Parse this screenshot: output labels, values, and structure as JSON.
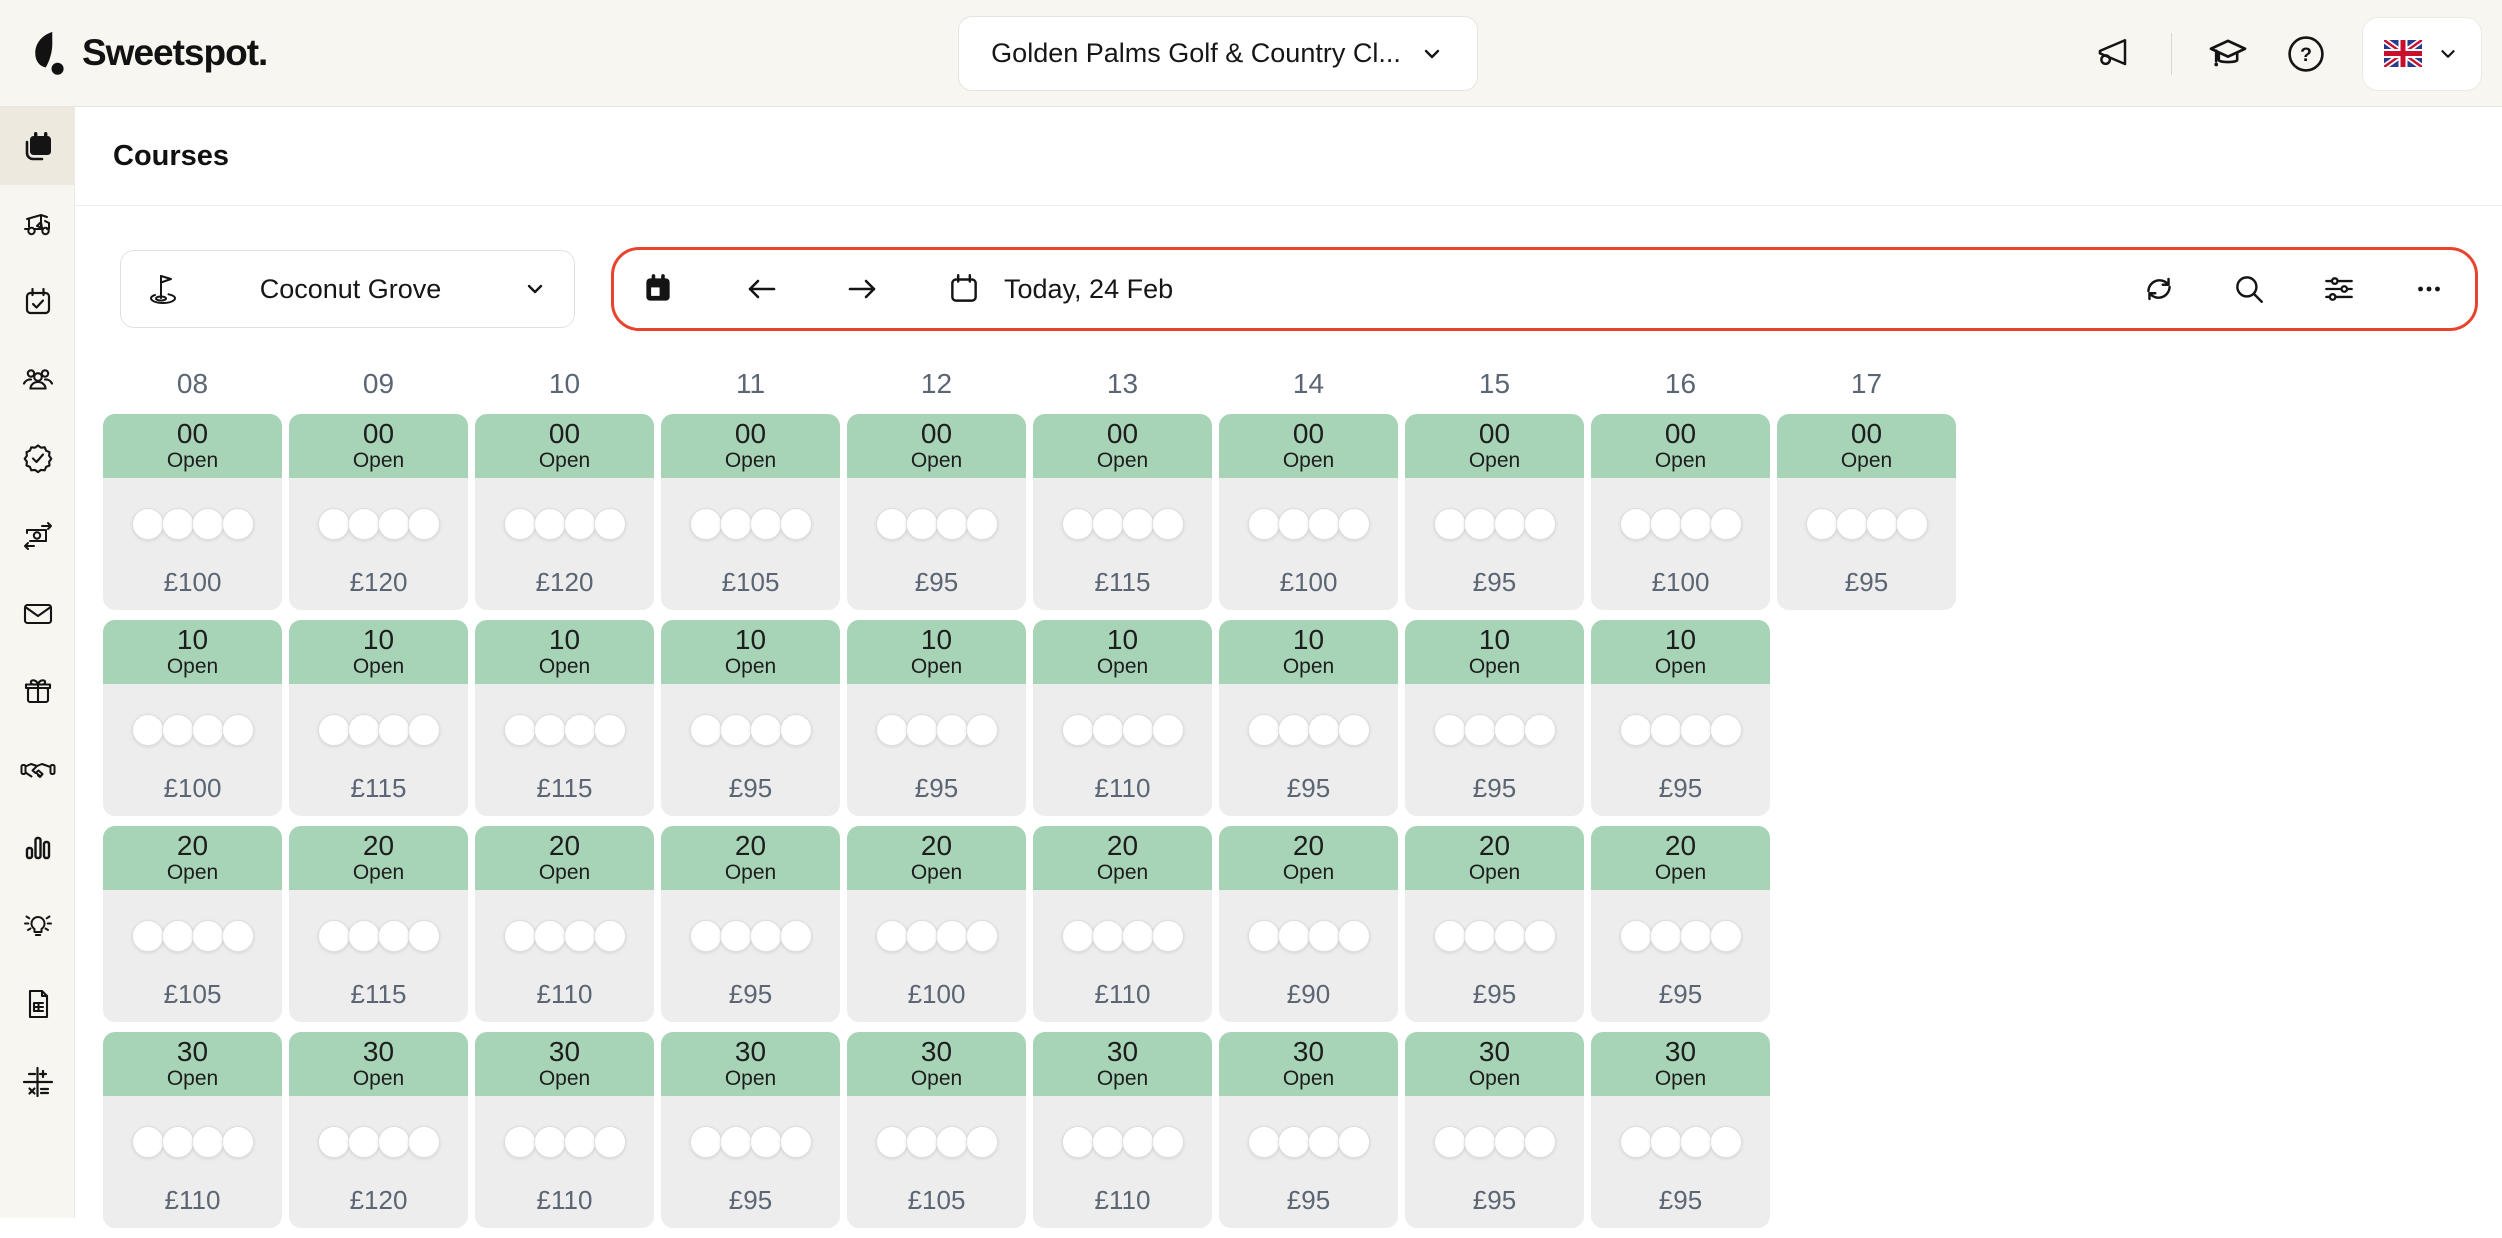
{
  "brand": {
    "logo_text": "Sweetspot."
  },
  "top_bar": {
    "club_selector_label": "Golden Palms Golf & Country Cl...",
    "icons": [
      "megaphone-icon",
      "graduation-cap-icon",
      "help-icon"
    ],
    "language_selector": {
      "flag": "uk-flag",
      "has_chevron": true
    }
  },
  "sidebar": {
    "items": [
      {
        "name": "tee-sheet",
        "icon": "calendar-filled-icon",
        "active": true
      },
      {
        "name": "golf-cart",
        "icon": "golf-cart-icon",
        "active": false
      },
      {
        "name": "bookings",
        "icon": "calendar-check-icon",
        "active": false
      },
      {
        "name": "members",
        "icon": "people-icon",
        "active": false
      },
      {
        "name": "memberships",
        "icon": "badge-check-icon",
        "active": false
      },
      {
        "name": "payments",
        "icon": "banknote-arrows-icon",
        "active": false
      },
      {
        "name": "messages",
        "icon": "envelope-icon",
        "active": false
      },
      {
        "name": "vouchers",
        "icon": "gift-icon",
        "active": false
      },
      {
        "name": "partnerships",
        "icon": "handshake-icon",
        "active": false
      },
      {
        "name": "reports",
        "icon": "bar-chart-icon",
        "active": false
      },
      {
        "name": "insights",
        "icon": "lightbulb-icon",
        "active": false
      },
      {
        "name": "invoices",
        "icon": "invoice-icon",
        "active": false
      },
      {
        "name": "price-rules",
        "icon": "math-operations-icon",
        "active": false
      }
    ]
  },
  "page": {
    "title": "Courses"
  },
  "toolbar": {
    "course_selector_label": "Coconut Grove",
    "date_label": "Today, 24 Feb",
    "left_icons": [
      "calendar-today-icon",
      "arrow-left-icon",
      "arrow-right-icon",
      "calendar-icon"
    ],
    "right_icons": [
      "refresh-icon",
      "search-icon",
      "sliders-icon",
      "ellipsis-icon"
    ],
    "highlight_border_color": "#E8432C"
  },
  "colors": {
    "accent_red": "#E8432C",
    "slot_green": "#A7D3B7",
    "cell_gray": "#EDEDED",
    "cream": "#F8F6F1",
    "muted_text": "#5B6574"
  },
  "tee_sheet": {
    "hour_columns": [
      "08",
      "09",
      "10",
      "11",
      "12",
      "13",
      "14",
      "15",
      "16",
      "17"
    ],
    "columns": [
      {
        "hour": "08",
        "slots": [
          {
            "minute": "00",
            "status": "Open",
            "price": "£100",
            "open_slots": 4
          },
          {
            "minute": "10",
            "status": "Open",
            "price": "£100",
            "open_slots": 4
          },
          {
            "minute": "20",
            "status": "Open",
            "price": "£105",
            "open_slots": 4
          },
          {
            "minute": "30",
            "status": "Open",
            "price": "£110",
            "open_slots": 4
          }
        ]
      },
      {
        "hour": "09",
        "slots": [
          {
            "minute": "00",
            "status": "Open",
            "price": "£120",
            "open_slots": 4
          },
          {
            "minute": "10",
            "status": "Open",
            "price": "£115",
            "open_slots": 4
          },
          {
            "minute": "20",
            "status": "Open",
            "price": "£115",
            "open_slots": 4
          },
          {
            "minute": "30",
            "status": "Open",
            "price": "£120",
            "open_slots": 4
          }
        ]
      },
      {
        "hour": "10",
        "slots": [
          {
            "minute": "00",
            "status": "Open",
            "price": "£120",
            "open_slots": 4
          },
          {
            "minute": "10",
            "status": "Open",
            "price": "£115",
            "open_slots": 4
          },
          {
            "minute": "20",
            "status": "Open",
            "price": "£110",
            "open_slots": 4
          },
          {
            "minute": "30",
            "status": "Open",
            "price": "£110",
            "open_slots": 4
          }
        ]
      },
      {
        "hour": "11",
        "slots": [
          {
            "minute": "00",
            "status": "Open",
            "price": "£105",
            "open_slots": 4
          },
          {
            "minute": "10",
            "status": "Open",
            "price": "£95",
            "open_slots": 4
          },
          {
            "minute": "20",
            "status": "Open",
            "price": "£95",
            "open_slots": 4
          },
          {
            "minute": "30",
            "status": "Open",
            "price": "£95",
            "open_slots": 4
          }
        ]
      },
      {
        "hour": "12",
        "slots": [
          {
            "minute": "00",
            "status": "Open",
            "price": "£95",
            "open_slots": 4
          },
          {
            "minute": "10",
            "status": "Open",
            "price": "£95",
            "open_slots": 4
          },
          {
            "minute": "20",
            "status": "Open",
            "price": "£100",
            "open_slots": 4
          },
          {
            "minute": "30",
            "status": "Open",
            "price": "£105",
            "open_slots": 4
          }
        ]
      },
      {
        "hour": "13",
        "slots": [
          {
            "minute": "00",
            "status": "Open",
            "price": "£115",
            "open_slots": 4
          },
          {
            "minute": "10",
            "status": "Open",
            "price": "£110",
            "open_slots": 4
          },
          {
            "minute": "20",
            "status": "Open",
            "price": "£110",
            "open_slots": 4
          },
          {
            "minute": "30",
            "status": "Open",
            "price": "£110",
            "open_slots": 4
          }
        ]
      },
      {
        "hour": "14",
        "slots": [
          {
            "minute": "00",
            "status": "Open",
            "price": "£100",
            "open_slots": 4
          },
          {
            "minute": "10",
            "status": "Open",
            "price": "£95",
            "open_slots": 4
          },
          {
            "minute": "20",
            "status": "Open",
            "price": "£90",
            "open_slots": 4
          },
          {
            "minute": "30",
            "status": "Open",
            "price": "£95",
            "open_slots": 4
          }
        ]
      },
      {
        "hour": "15",
        "slots": [
          {
            "minute": "00",
            "status": "Open",
            "price": "£95",
            "open_slots": 4
          },
          {
            "minute": "10",
            "status": "Open",
            "price": "£95",
            "open_slots": 4
          },
          {
            "minute": "20",
            "status": "Open",
            "price": "£95",
            "open_slots": 4
          },
          {
            "minute": "30",
            "status": "Open",
            "price": "£95",
            "open_slots": 4
          }
        ]
      },
      {
        "hour": "16",
        "slots": [
          {
            "minute": "00",
            "status": "Open",
            "price": "£100",
            "open_slots": 4
          },
          {
            "minute": "10",
            "status": "Open",
            "price": "£95",
            "open_slots": 4
          },
          {
            "minute": "20",
            "status": "Open",
            "price": "£95",
            "open_slots": 4
          },
          {
            "minute": "30",
            "status": "Open",
            "price": "£95",
            "open_slots": 4
          }
        ]
      },
      {
        "hour": "17",
        "slots": [
          {
            "minute": "00",
            "status": "Open",
            "price": "£95",
            "open_slots": 4
          }
        ]
      }
    ]
  }
}
